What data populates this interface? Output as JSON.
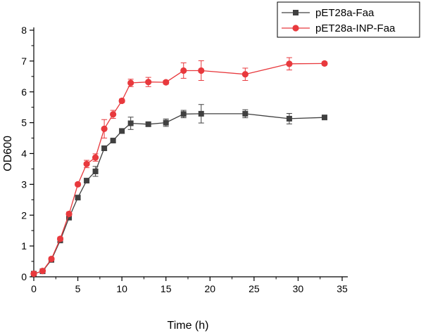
{
  "chart_data": {
    "type": "line",
    "xlabel": "Time (h)",
    "ylabel": "OD600",
    "xlim": [
      0,
      35
    ],
    "ylim": [
      0,
      8
    ],
    "x_ticks": [
      0,
      5,
      10,
      15,
      20,
      25,
      30,
      35
    ],
    "y_ticks": [
      0,
      1,
      2,
      3,
      4,
      5,
      6,
      7,
      8
    ],
    "grid": false,
    "legend_position": "top-right",
    "series": [
      {
        "name": "pET28a-Faa",
        "color": "#404040",
        "marker": "square",
        "x": [
          0,
          1,
          2,
          3,
          4,
          5,
          6,
          7,
          8,
          9,
          10,
          11,
          13,
          15,
          17,
          19,
          24,
          29,
          33
        ],
        "y": [
          0.1,
          0.18,
          0.55,
          1.18,
          1.92,
          2.57,
          3.12,
          3.42,
          4.17,
          4.42,
          4.73,
          4.98,
          4.95,
          5.0,
          5.28,
          5.29,
          5.29,
          5.13,
          5.17
        ],
        "err": [
          0.02,
          0.03,
          0.05,
          0.05,
          0.05,
          0.05,
          0.07,
          0.16,
          0.07,
          0.05,
          0.08,
          0.2,
          0.06,
          0.12,
          0.12,
          0.3,
          0.13,
          0.17,
          0.05
        ]
      },
      {
        "name": "pET28a-INP-Faa",
        "color": "#e8393d",
        "marker": "circle",
        "x": [
          0,
          1,
          2,
          3,
          4,
          5,
          6,
          7,
          8,
          9,
          10,
          11,
          13,
          15,
          17,
          19,
          24,
          29,
          33
        ],
        "y": [
          0.1,
          0.19,
          0.58,
          1.23,
          2.04,
          3.0,
          3.66,
          3.87,
          4.8,
          5.27,
          5.71,
          6.29,
          6.32,
          6.31,
          6.69,
          6.69,
          6.57,
          6.91,
          6.92
        ],
        "err": [
          0.02,
          0.03,
          0.05,
          0.06,
          0.06,
          0.05,
          0.12,
          0.12,
          0.3,
          0.13,
          0.06,
          0.12,
          0.15,
          0.06,
          0.25,
          0.32,
          0.2,
          0.2,
          0.05
        ]
      }
    ]
  }
}
